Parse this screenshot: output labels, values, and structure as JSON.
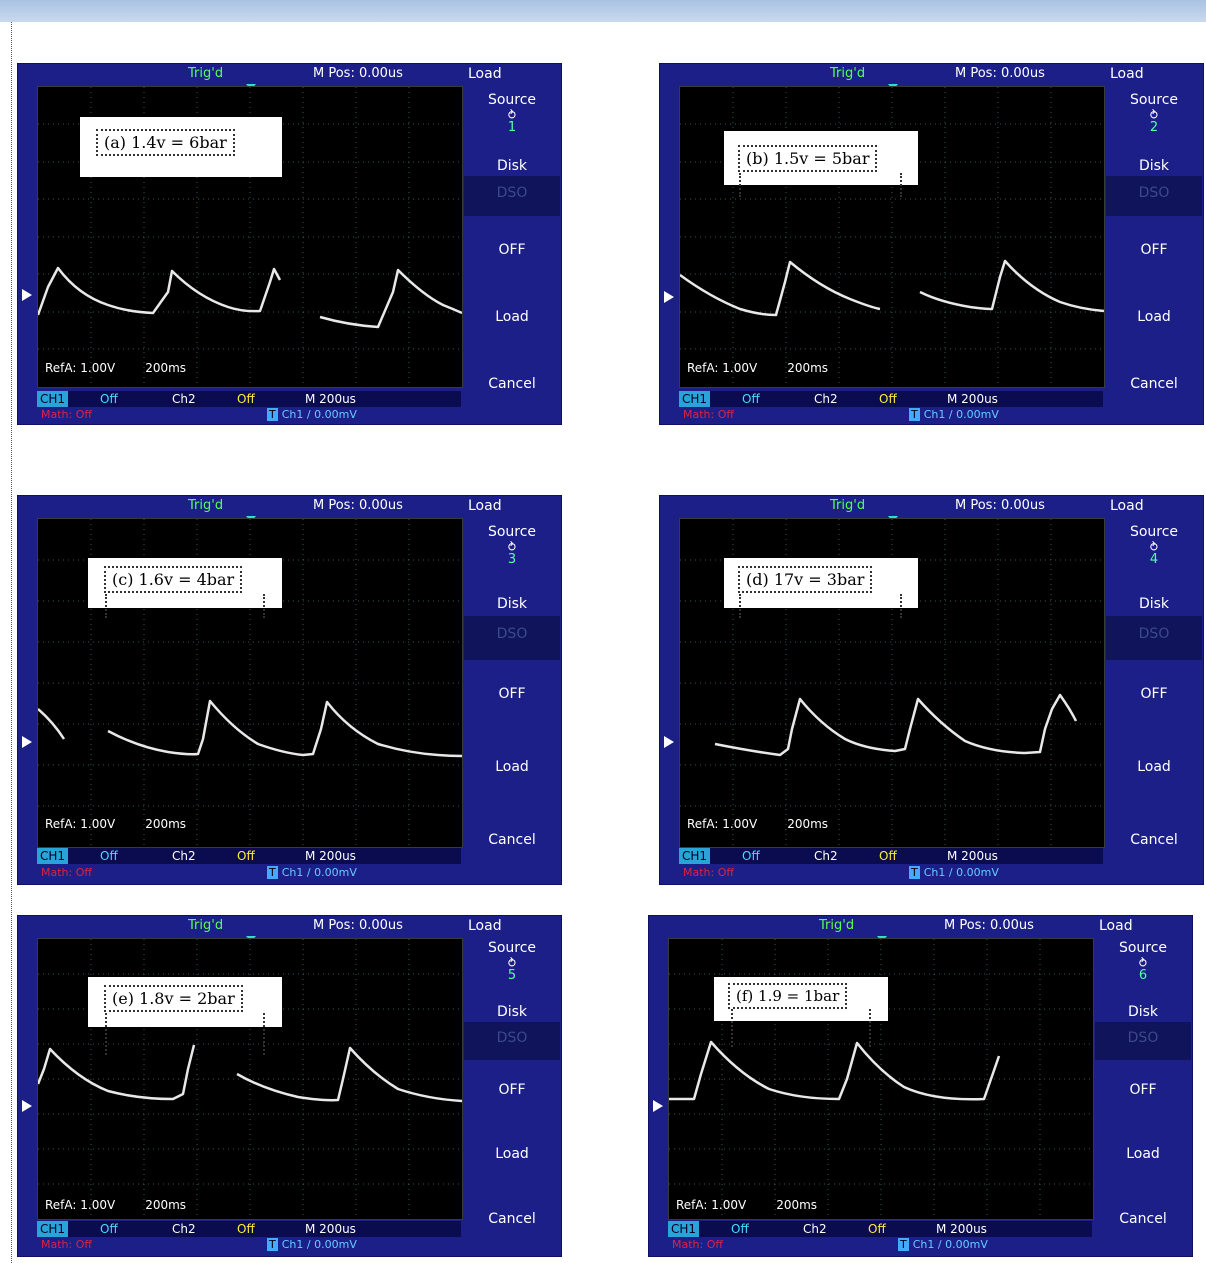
{
  "common": {
    "trig": "Trig'd",
    "mpos": "M Pos: 0.00us",
    "menu_title": "Load",
    "source_label": "Source",
    "source_symbol": "⥁",
    "disk_label": "Disk",
    "dso_label": "DSO",
    "off_label": "OFF",
    "load_label": "Load",
    "cancel_label": "Cancel",
    "ref_label": "RefA: 1.00V",
    "ref_timebase": "200ms",
    "ch1": "CH1",
    "ch1_state": "Off",
    "ch2": "Ch2",
    "ch2_state": "Off",
    "main_timebase": "M 200us",
    "math": "Math: Off",
    "trig_icon": "T",
    "trig_src": "Ch1",
    "trig_slope": "/",
    "trig_level": "0.00mV"
  },
  "panels": [
    {
      "label": "(a) 1.4v = 6bar",
      "source_num": "1"
    },
    {
      "label": "(b) 1.5v = 5bar",
      "source_num": "2"
    },
    {
      "label": "(c) 1.6v = 4bar",
      "source_num": "3"
    },
    {
      "label": "(d) 17v = 3bar",
      "source_num": "4"
    },
    {
      "label": "(e) 1.8v = 2bar",
      "source_num": "5"
    },
    {
      "label": "(f) 1.9 = 1bar",
      "source_num": "6"
    }
  ]
}
